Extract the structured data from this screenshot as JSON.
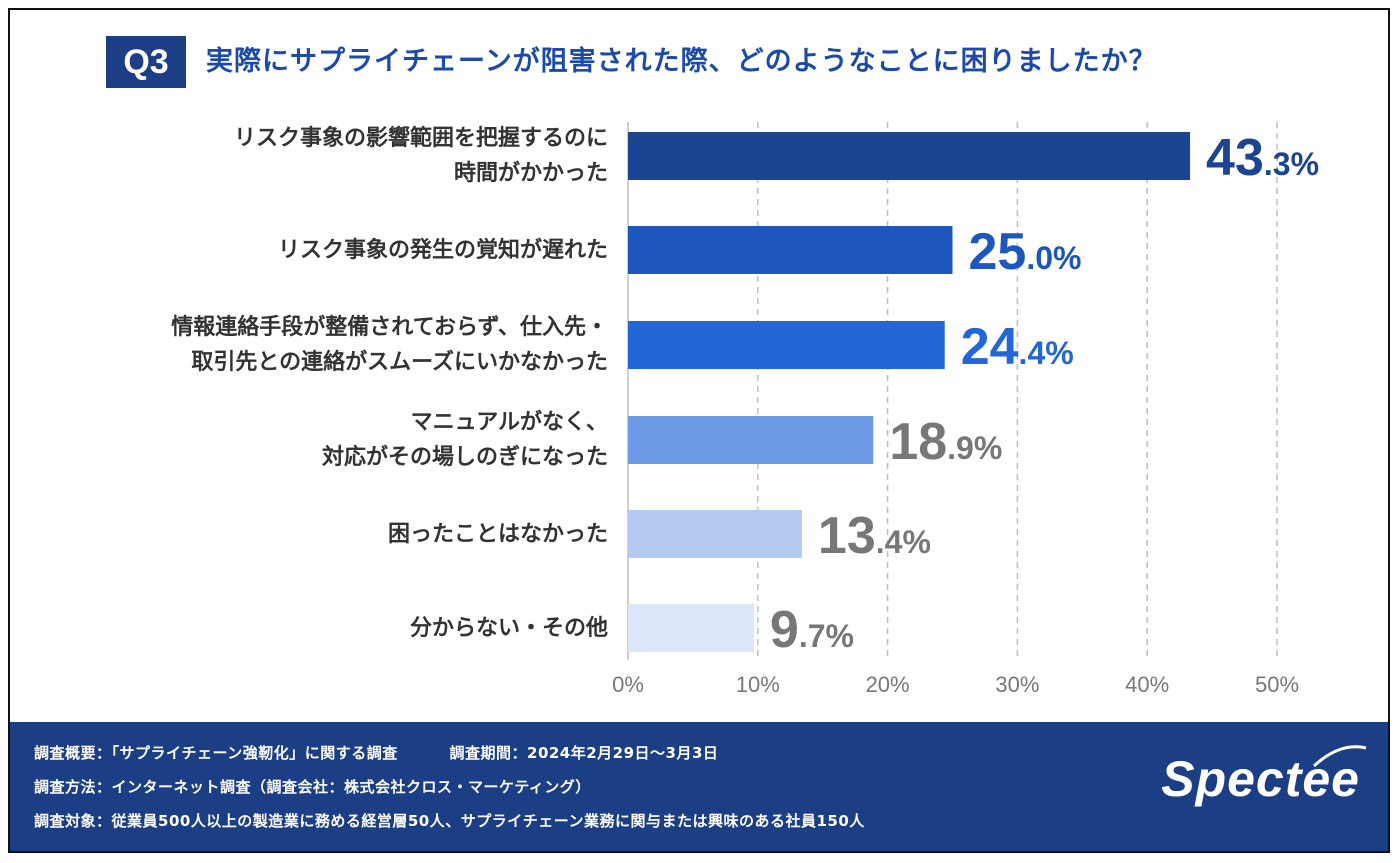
{
  "question": {
    "badge": "Q3",
    "text": "実際にサプライチェーンが阻害された際、どのようなことに困りましたか？"
  },
  "colors": {
    "navy": "#1b3e85",
    "bar_colors": [
      "#1b4590",
      "#1d57bd",
      "#2367d6",
      "#6e9be6",
      "#b5caf1",
      "#dbe6f8"
    ],
    "label_colors": [
      "#1b4590",
      "#1d57bd",
      "#2367d6",
      "#777777",
      "#777777",
      "#777777"
    ]
  },
  "chart_data": {
    "type": "bar",
    "orientation": "horizontal",
    "categories": [
      [
        "リスク事象の影響範囲を把握するのに",
        "時間がかかった"
      ],
      [
        "リスク事象の発生の覚知が遅れた"
      ],
      [
        "情報連絡手段が整備されておらず、仕入先・",
        "取引先との連絡がスムーズにいかなかった"
      ],
      [
        "マニュアルがなく、",
        "対応がその場しのぎになった"
      ],
      [
        "困ったことはなかった"
      ],
      [
        "分からない・その他"
      ]
    ],
    "values": [
      43.3,
      25.0,
      24.4,
      18.9,
      13.4,
      9.7
    ],
    "value_labels": [
      {
        "int": "43",
        "dec": ".3%"
      },
      {
        "int": "25",
        "dec": ".0%"
      },
      {
        "int": "24",
        "dec": ".4%"
      },
      {
        "int": "18",
        "dec": ".9%"
      },
      {
        "int": "13",
        "dec": ".4%"
      },
      {
        "int": "9",
        "dec": ".7%"
      }
    ],
    "xlim": [
      0,
      50
    ],
    "xticks": [
      "0%",
      "10%",
      "20%",
      "30%",
      "40%",
      "50%"
    ],
    "grid": "dashed vertical"
  },
  "footer": {
    "line1_a": "調査概要：「サプライチェーン強靭化」に関する調査",
    "line1_b": "調査期間：2024年2月29日〜3月3日",
    "line2": "調査方法：インターネット調査（調査会社：株式会社クロス・マーケティング）",
    "line3": "調査対象：従業員500人以上の製造業に務める経営層50人、サプライチェーン業務に関与または興味のある社員150人",
    "logo": "Spectee"
  }
}
